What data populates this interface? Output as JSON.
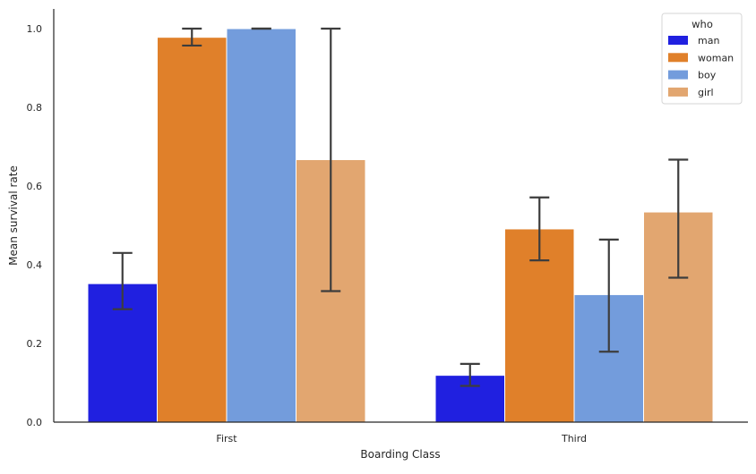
{
  "chart_data": {
    "type": "bar",
    "xlabel": "Boarding Class",
    "ylabel": "Mean survival rate",
    "categories": [
      "First",
      "Third"
    ],
    "ylim": [
      0,
      1.05
    ],
    "yticks": [
      0.0,
      0.2,
      0.4,
      0.6,
      0.8,
      1.0
    ],
    "ytick_labels": [
      "0.0",
      "0.2",
      "0.4",
      "0.6",
      "0.8",
      "1.0"
    ],
    "grid": false,
    "legend": {
      "title": "who",
      "position": "top-right"
    },
    "series": [
      {
        "name": "man",
        "color": "#2020e0",
        "values": [
          0.352,
          0.119
        ],
        "ci_low": [
          0.287,
          0.092
        ],
        "ci_high": [
          0.43,
          0.148
        ]
      },
      {
        "name": "woman",
        "color": "#e0802a",
        "values": [
          0.978,
          0.491
        ],
        "ci_low": [
          0.957,
          0.411
        ],
        "ci_high": [
          1.0,
          0.571
        ]
      },
      {
        "name": "boy",
        "color": "#739cdc",
        "values": [
          1.0,
          0.324
        ],
        "ci_low": [
          1.0,
          0.179
        ],
        "ci_high": [
          1.0,
          0.464
        ]
      },
      {
        "name": "girl",
        "color": "#e2a670",
        "values": [
          0.667,
          0.534
        ],
        "ci_low": [
          0.333,
          0.367
        ],
        "ci_high": [
          1.0,
          0.667
        ]
      }
    ]
  }
}
